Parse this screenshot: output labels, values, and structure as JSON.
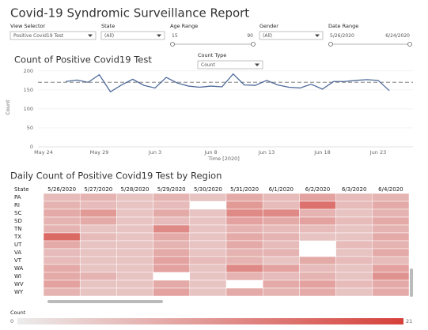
{
  "header": {
    "title": "Covid-19 Syndromic Surveillance Report"
  },
  "filters": [
    {
      "label": "View Selector",
      "value": "Positive Covid19 Test"
    },
    {
      "label": "State",
      "value": "(All)"
    },
    {
      "label": "Age Range",
      "min": 15,
      "max": 90
    },
    {
      "label": "Gender",
      "value": "(All)"
    },
    {
      "label": "Date Range",
      "start": "5/26/2020",
      "end": "6/24/2020"
    }
  ],
  "count_type": {
    "label": "Count Type",
    "value": "Count"
  },
  "chart_data": [
    {
      "type": "line",
      "title": "Count of Positive Covid19 Test",
      "x_label": "Time [2020]",
      "y_label": "Count",
      "categories": [
        "May 24",
        null,
        null,
        null,
        null,
        "May 29",
        null,
        null,
        null,
        null,
        "Jun 3",
        null,
        null,
        null,
        null,
        "Jun 8",
        null,
        null,
        null,
        null,
        "Jun 13",
        null,
        null,
        null,
        null,
        "Jun 18",
        null,
        null,
        null,
        null,
        "Jun 23",
        null,
        null
      ],
      "series": [
        {
          "name": "Count",
          "color": "#4e6a9a",
          "values": [
            null,
            null,
            172,
            176,
            170,
            190,
            145,
            163,
            178,
            162,
            155,
            183,
            168,
            160,
            157,
            160,
            158,
            192,
            163,
            162,
            175,
            163,
            157,
            155,
            165,
            152,
            172,
            172,
            175,
            177,
            175,
            148,
            null
          ]
        }
      ],
      "reference_line": 170,
      "reference_color": "#9a9a9a",
      "ylim": [
        0,
        210
      ],
      "yticks": [
        0,
        50,
        100,
        150,
        200
      ],
      "grid": true
    },
    {
      "type": "heatmap",
      "title": "Daily Count of Positive Covid19 Test by Region",
      "row_header": "State",
      "x": [
        "5/26/2020",
        "5/27/2020",
        "5/28/2020",
        "5/29/2020",
        "5/30/2020",
        "5/31/2020",
        "6/1/2020",
        "6/2/2020",
        "6/3/2020",
        "6/4/2020"
      ],
      "y": [
        "PA",
        "RI",
        "SC",
        "SD",
        "TN",
        "TX",
        "UT",
        "VA",
        "VT",
        "WA",
        "WI",
        "WV",
        "WY"
      ],
      "values": [
        [
          6,
          7,
          5,
          7,
          5,
          8,
          6,
          9,
          6,
          7
        ],
        [
          7,
          6,
          5,
          6,
          null,
          10,
          6,
          15,
          6,
          8
        ],
        [
          8,
          10,
          5,
          8,
          5,
          12,
          12,
          7,
          5,
          7
        ],
        [
          7,
          8,
          5,
          6,
          5,
          9,
          8,
          9,
          6,
          8
        ],
        [
          7,
          5,
          5,
          12,
          5,
          7,
          6,
          6,
          5,
          7
        ],
        [
          16,
          6,
          5,
          8,
          5,
          8,
          7,
          5,
          5,
          8
        ],
        [
          8,
          5,
          5,
          7,
          5,
          8,
          6,
          null,
          6,
          7
        ],
        [
          6,
          5,
          5,
          8,
          5,
          7,
          7,
          null,
          5,
          8
        ],
        [
          6,
          5,
          5,
          9,
          6,
          7,
          5,
          8,
          6,
          6
        ],
        [
          8,
          5,
          5,
          9,
          5,
          12,
          9,
          6,
          5,
          9
        ],
        [
          8,
          7,
          5,
          null,
          5,
          7,
          6,
          7,
          5,
          11
        ],
        [
          9,
          5,
          5,
          8,
          5,
          null,
          8,
          9,
          6,
          8
        ],
        [
          7,
          5,
          5,
          9,
          5,
          8,
          7,
          8,
          5,
          8
        ]
      ],
      "colors": [
        "#ececec",
        "#d6403a"
      ],
      "legend_title": "Count",
      "zlim": [
        0,
        21
      ]
    }
  ]
}
